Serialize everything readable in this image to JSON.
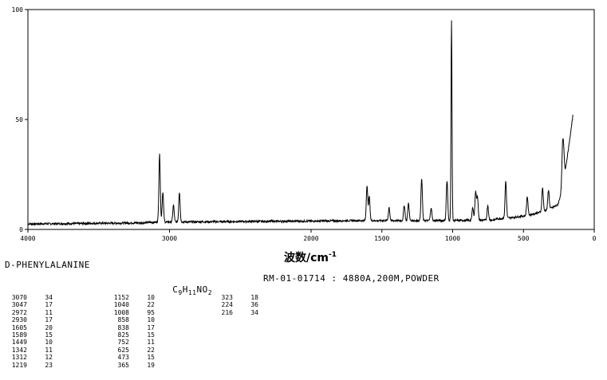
{
  "header": {
    "compound": "D-PHENYLALANINE",
    "formula_parts": [
      "C",
      "9",
      "H",
      "11",
      "NO",
      "2"
    ],
    "sample_info": "RM-01-01714 : 4880A,200M,POWDER"
  },
  "chart_data": {
    "type": "line",
    "title": "",
    "xlabel": "波数/cm",
    "xlabel_sup": "-1",
    "ylabel": "",
    "xlim": [
      4000,
      0
    ],
    "ylim": [
      0,
      100
    ],
    "xticks": [
      4000,
      3000,
      2000,
      1500,
      1000,
      500,
      0
    ],
    "xtick_labels": [
      "4000",
      "3000",
      "2000",
      "1500",
      "1000",
      "500",
      "0"
    ],
    "yticks": [
      0,
      50,
      100
    ],
    "ytick_labels": [
      "0",
      "50",
      "100"
    ],
    "grid": false,
    "line_color": "#000000",
    "baseline_x": [
      4000,
      3500,
      3200,
      3100,
      2500,
      2000,
      1700
    ],
    "baseline_y": [
      2.5,
      2.8,
      3.0,
      3.3,
      3.6,
      3.8,
      4.0
    ],
    "peaks": [
      {
        "x": 3070,
        "y": 34
      },
      {
        "x": 3047,
        "y": 17
      },
      {
        "x": 2972,
        "y": 11
      },
      {
        "x": 2930,
        "y": 17
      },
      {
        "x": 1605,
        "y": 20
      },
      {
        "x": 1589,
        "y": 15
      },
      {
        "x": 1449,
        "y": 10
      },
      {
        "x": 1342,
        "y": 11
      },
      {
        "x": 1312,
        "y": 12
      },
      {
        "x": 1219,
        "y": 23
      },
      {
        "x": 1152,
        "y": 10
      },
      {
        "x": 1040,
        "y": 22
      },
      {
        "x": 1008,
        "y": 95
      },
      {
        "x": 858,
        "y": 10
      },
      {
        "x": 838,
        "y": 17
      },
      {
        "x": 825,
        "y": 15
      },
      {
        "x": 752,
        "y": 11
      },
      {
        "x": 625,
        "y": 22
      },
      {
        "x": 473,
        "y": 15
      },
      {
        "x": 365,
        "y": 19
      },
      {
        "x": 323,
        "y": 18
      },
      {
        "x": 224,
        "y": 36
      },
      {
        "x": 216,
        "y": 34
      }
    ],
    "rising_end": {
      "x": 150,
      "y": 56
    }
  },
  "peak_table": [
    [
      [
        "3070",
        "34"
      ],
      [
        "3047",
        "17"
      ],
      [
        "2972",
        "11"
      ],
      [
        "2930",
        "17"
      ],
      [
        "1605",
        "20"
      ],
      [
        "1589",
        "15"
      ],
      [
        "1449",
        "10"
      ],
      [
        "1342",
        "11"
      ],
      [
        "1312",
        "12"
      ],
      [
        "1219",
        "23"
      ]
    ],
    [
      [
        "1152",
        "10"
      ],
      [
        "1040",
        "22"
      ],
      [
        "1008",
        "95"
      ],
      [
        "858",
        "10"
      ],
      [
        "838",
        "17"
      ],
      [
        "825",
        "15"
      ],
      [
        "752",
        "11"
      ],
      [
        "625",
        "22"
      ],
      [
        "473",
        "15"
      ],
      [
        "365",
        "19"
      ]
    ],
    [
      [
        "323",
        "18"
      ],
      [
        "224",
        "36"
      ],
      [
        "216",
        "34"
      ]
    ]
  ]
}
